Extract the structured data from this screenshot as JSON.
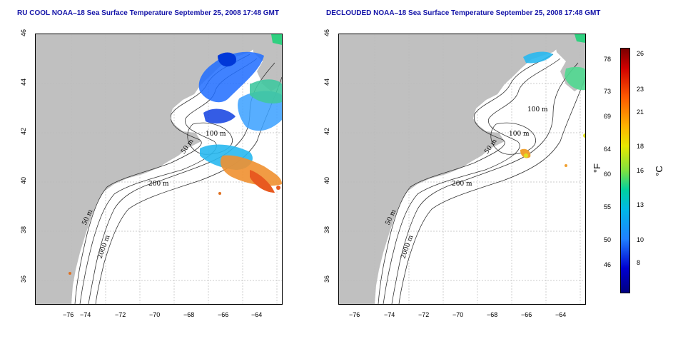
{
  "left_panel": {
    "title": "RU COOL NOAA–18 Sea Surface Temperature September 25, 2008 17:48 GMT",
    "contour_labels": [
      "100 m",
      "50 m",
      "200 m",
      "50 m",
      "2000 m"
    ]
  },
  "right_panel": {
    "title": "DECLOUDED NOAA–18 Sea Surface Temperature September 25, 2008 17:48 GMT",
    "contour_labels": [
      "100 m",
      "100 m",
      "50 m",
      "200 m",
      "50 m",
      "2000 m"
    ]
  },
  "axes": {
    "x_ticks": [
      "−76",
      "−74",
      "−72",
      "−70",
      "−68",
      "−66",
      "−64"
    ],
    "y_ticks": [
      "36",
      "38",
      "40",
      "42",
      "44",
      "46"
    ]
  },
  "colorbar": {
    "fahrenheit_unit": "°F",
    "celsius_unit": "°C",
    "fahrenheit_ticks": [
      "78",
      "73",
      "69",
      "64",
      "60",
      "55",
      "50",
      "46"
    ],
    "celsius_ticks": [
      "26",
      "23",
      "21",
      "18",
      "16",
      "13",
      "10",
      "8"
    ]
  },
  "colors": {
    "title": "#1414a8",
    "land": "#c0c0c0",
    "grid": "#bbbbbb"
  }
}
